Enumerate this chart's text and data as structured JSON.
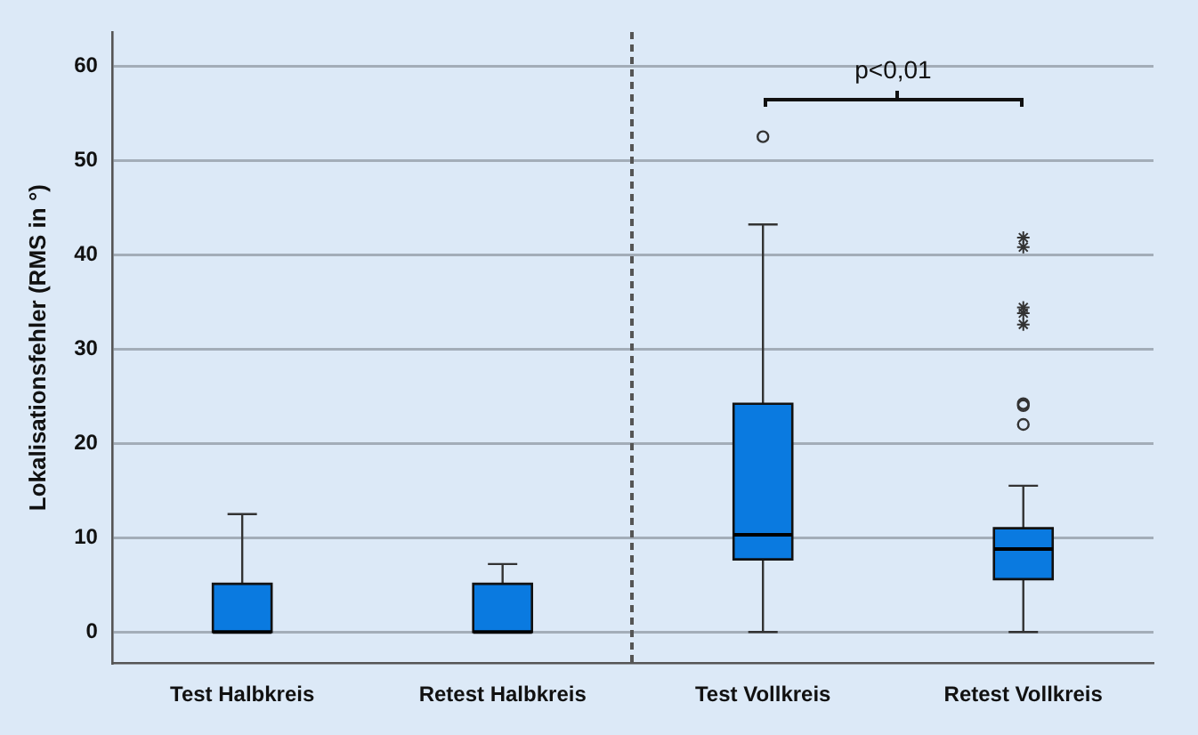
{
  "chart_data": {
    "type": "box",
    "ylabel": "Lokalisationsfehler (RMS in °)",
    "categories": [
      "Test Halbkreis",
      "Retest Halbkreis",
      "Test Vollkreis",
      "Retest Vollkreis"
    ],
    "series": [
      {
        "color": "#0a7ae0",
        "boxes": [
          {
            "low": 0,
            "q1": 0,
            "median": 0,
            "q3": 5.1,
            "high": 12.5
          },
          {
            "low": 0,
            "q1": 0,
            "median": 0,
            "q3": 5.1,
            "high": 7.2
          },
          {
            "low": 0,
            "q1": 7.7,
            "median": 10.3,
            "q3": 24.2,
            "high": 43.2,
            "outliers": [
              52.5
            ]
          },
          {
            "low": 0,
            "q1": 5.6,
            "median": 8.8,
            "q3": 11.0,
            "high": 15.5,
            "outliers": [
              24.2,
              24.0,
              22.0
            ]
          }
        ]
      },
      {
        "type": "scatter",
        "marker": "cross",
        "color": "#333333",
        "x": [
          "Retest Vollkreis",
          "Retest Vollkreis",
          "Retest Vollkreis",
          "Retest Vollkreis",
          "Retest Vollkreis"
        ],
        "values": [
          41.8,
          40.8,
          34.4,
          33.8,
          32.6
        ]
      }
    ],
    "ylim": [
      -3.3,
      63.6
    ],
    "yticks": [
      0,
      10,
      20,
      30,
      40,
      50,
      60
    ],
    "grid": "y",
    "annotations": [
      "p<0,01"
    ]
  }
}
